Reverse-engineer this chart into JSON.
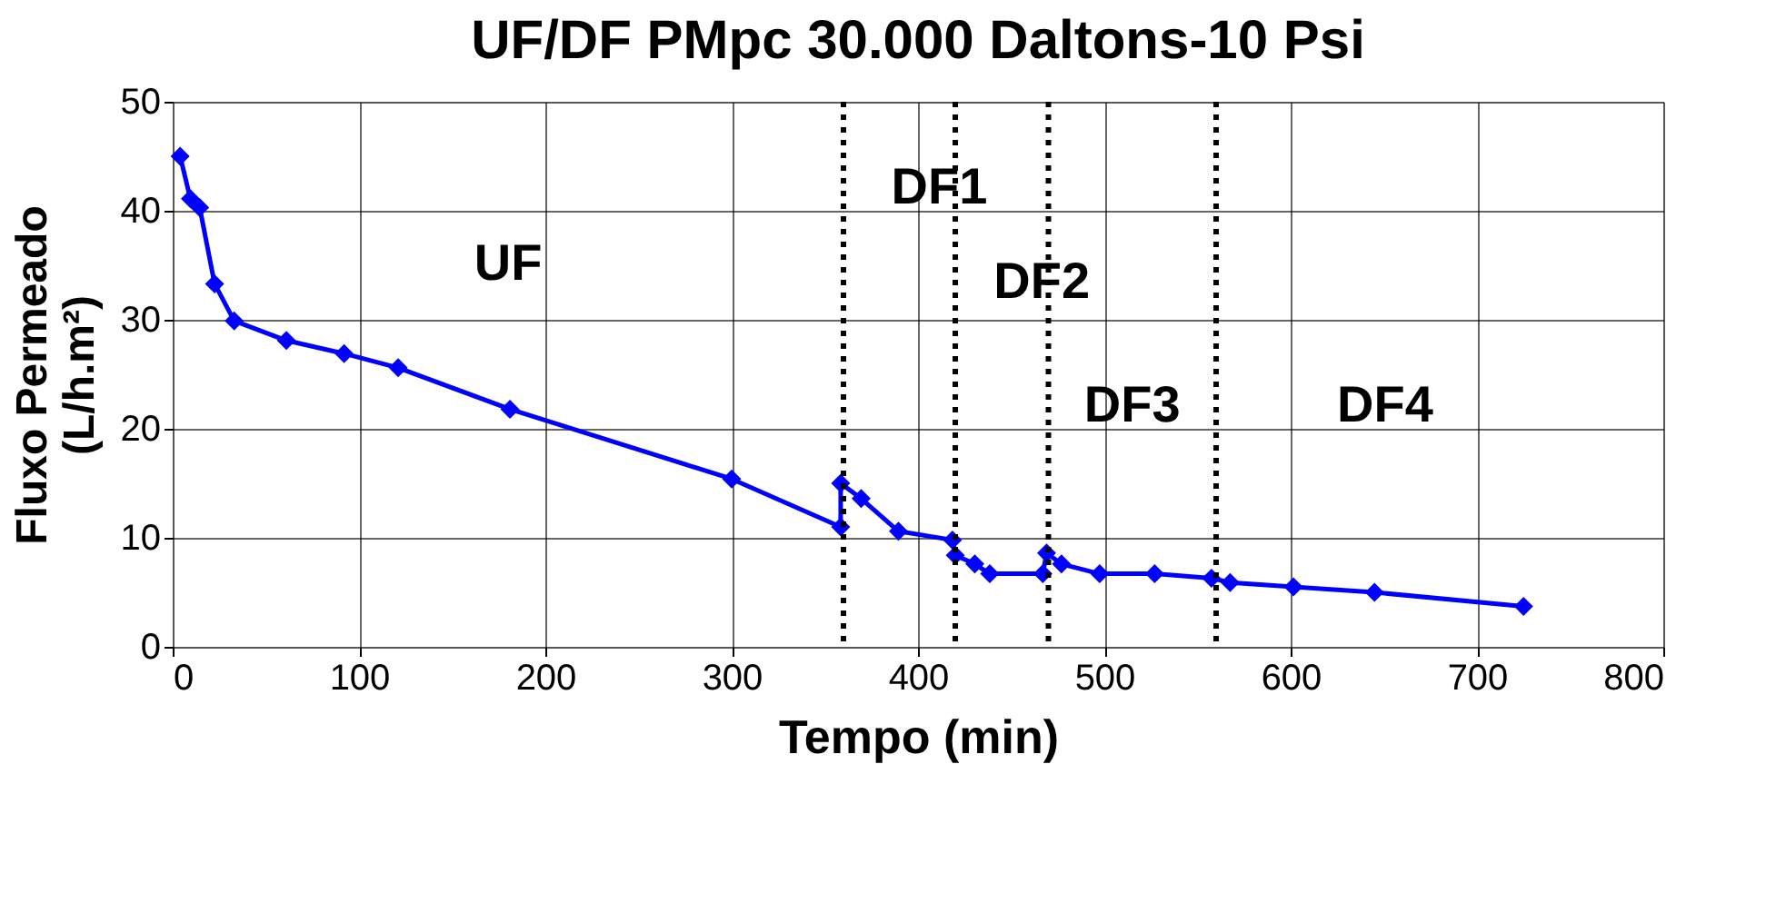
{
  "chart_data": {
    "type": "line",
    "title": "UF/DF PMpc  30.000 Daltons-10 Psi",
    "xlabel": "Tempo (min)",
    "ylabel": "Fluxo Permeado (L/h.m²)",
    "x": [
      4,
      9.5,
      14.5,
      22.5,
      33,
      61,
      92,
      121,
      181,
      300,
      358.5,
      358.5,
      369.5,
      389.5,
      418.5,
      420,
      430.5,
      438.5,
      467,
      469,
      477,
      497.5,
      527,
      557.5,
      567.5,
      601.5,
      645,
      725
    ],
    "series": [
      {
        "color": "#0000ff",
        "values": [
          45.0,
          41.1,
          40.3,
          33.3,
          29.9,
          28.1,
          26.9,
          25.6,
          21.8,
          15.4,
          11.0,
          15.0,
          13.6,
          10.6,
          9.8,
          8.4,
          7.6,
          6.7,
          6.7,
          8.6,
          7.6,
          6.7,
          6.7,
          6.3,
          5.9,
          5.5,
          5.0,
          3.7
        ]
      }
    ],
    "xlim": [
      0,
      800
    ],
    "xticks": [
      0,
      100,
      200,
      300,
      400,
      500,
      600,
      700,
      800
    ],
    "ylim": [
      0,
      50
    ],
    "yticks": [
      0,
      10,
      20,
      30,
      40,
      50
    ],
    "grid": true,
    "marker": "diamond",
    "line_style": "solid",
    "ref_lines": [
      {
        "axis": "x",
        "value": 360,
        "color": "#000000",
        "line_style": "dotted"
      },
      {
        "axis": "x",
        "value": 420,
        "color": "#000000",
        "line_style": "dotted"
      },
      {
        "axis": "x",
        "value": 470,
        "color": "#000000",
        "line_style": "dotted"
      },
      {
        "axis": "x",
        "value": 560,
        "color": "#000000",
        "line_style": "dotted"
      }
    ],
    "annotations": [
      "UF",
      "DF1",
      "DF2",
      "DF3",
      "DF4"
    ]
  }
}
